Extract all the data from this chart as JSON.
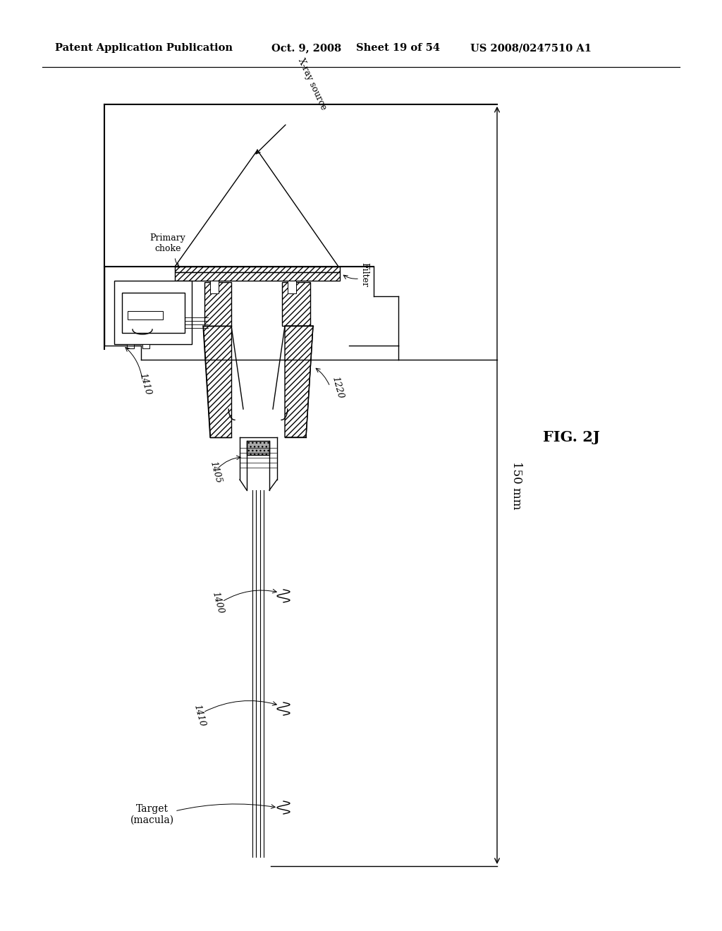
{
  "bg_color": "#ffffff",
  "title_line1": "Patent Application Publication",
  "title_line2": "Oct. 9, 2008",
  "title_line3": "Sheet 19 of 54",
  "title_line4": "US 2008/0247510 A1",
  "fig_label": "FIG. 2J",
  "dim_label": "150 mm",
  "labels": {
    "xray_source": "X-ray source",
    "primary_choke": "Primary\nchoke",
    "filter": "Filter",
    "label_1220": "1220",
    "label_1410_top": "1410",
    "label_1405": "1405",
    "label_1400": "1400",
    "label_1410_bot": "1410",
    "target": "Target\n(macula)"
  },
  "lw": 1.0,
  "lw_thick": 1.5
}
